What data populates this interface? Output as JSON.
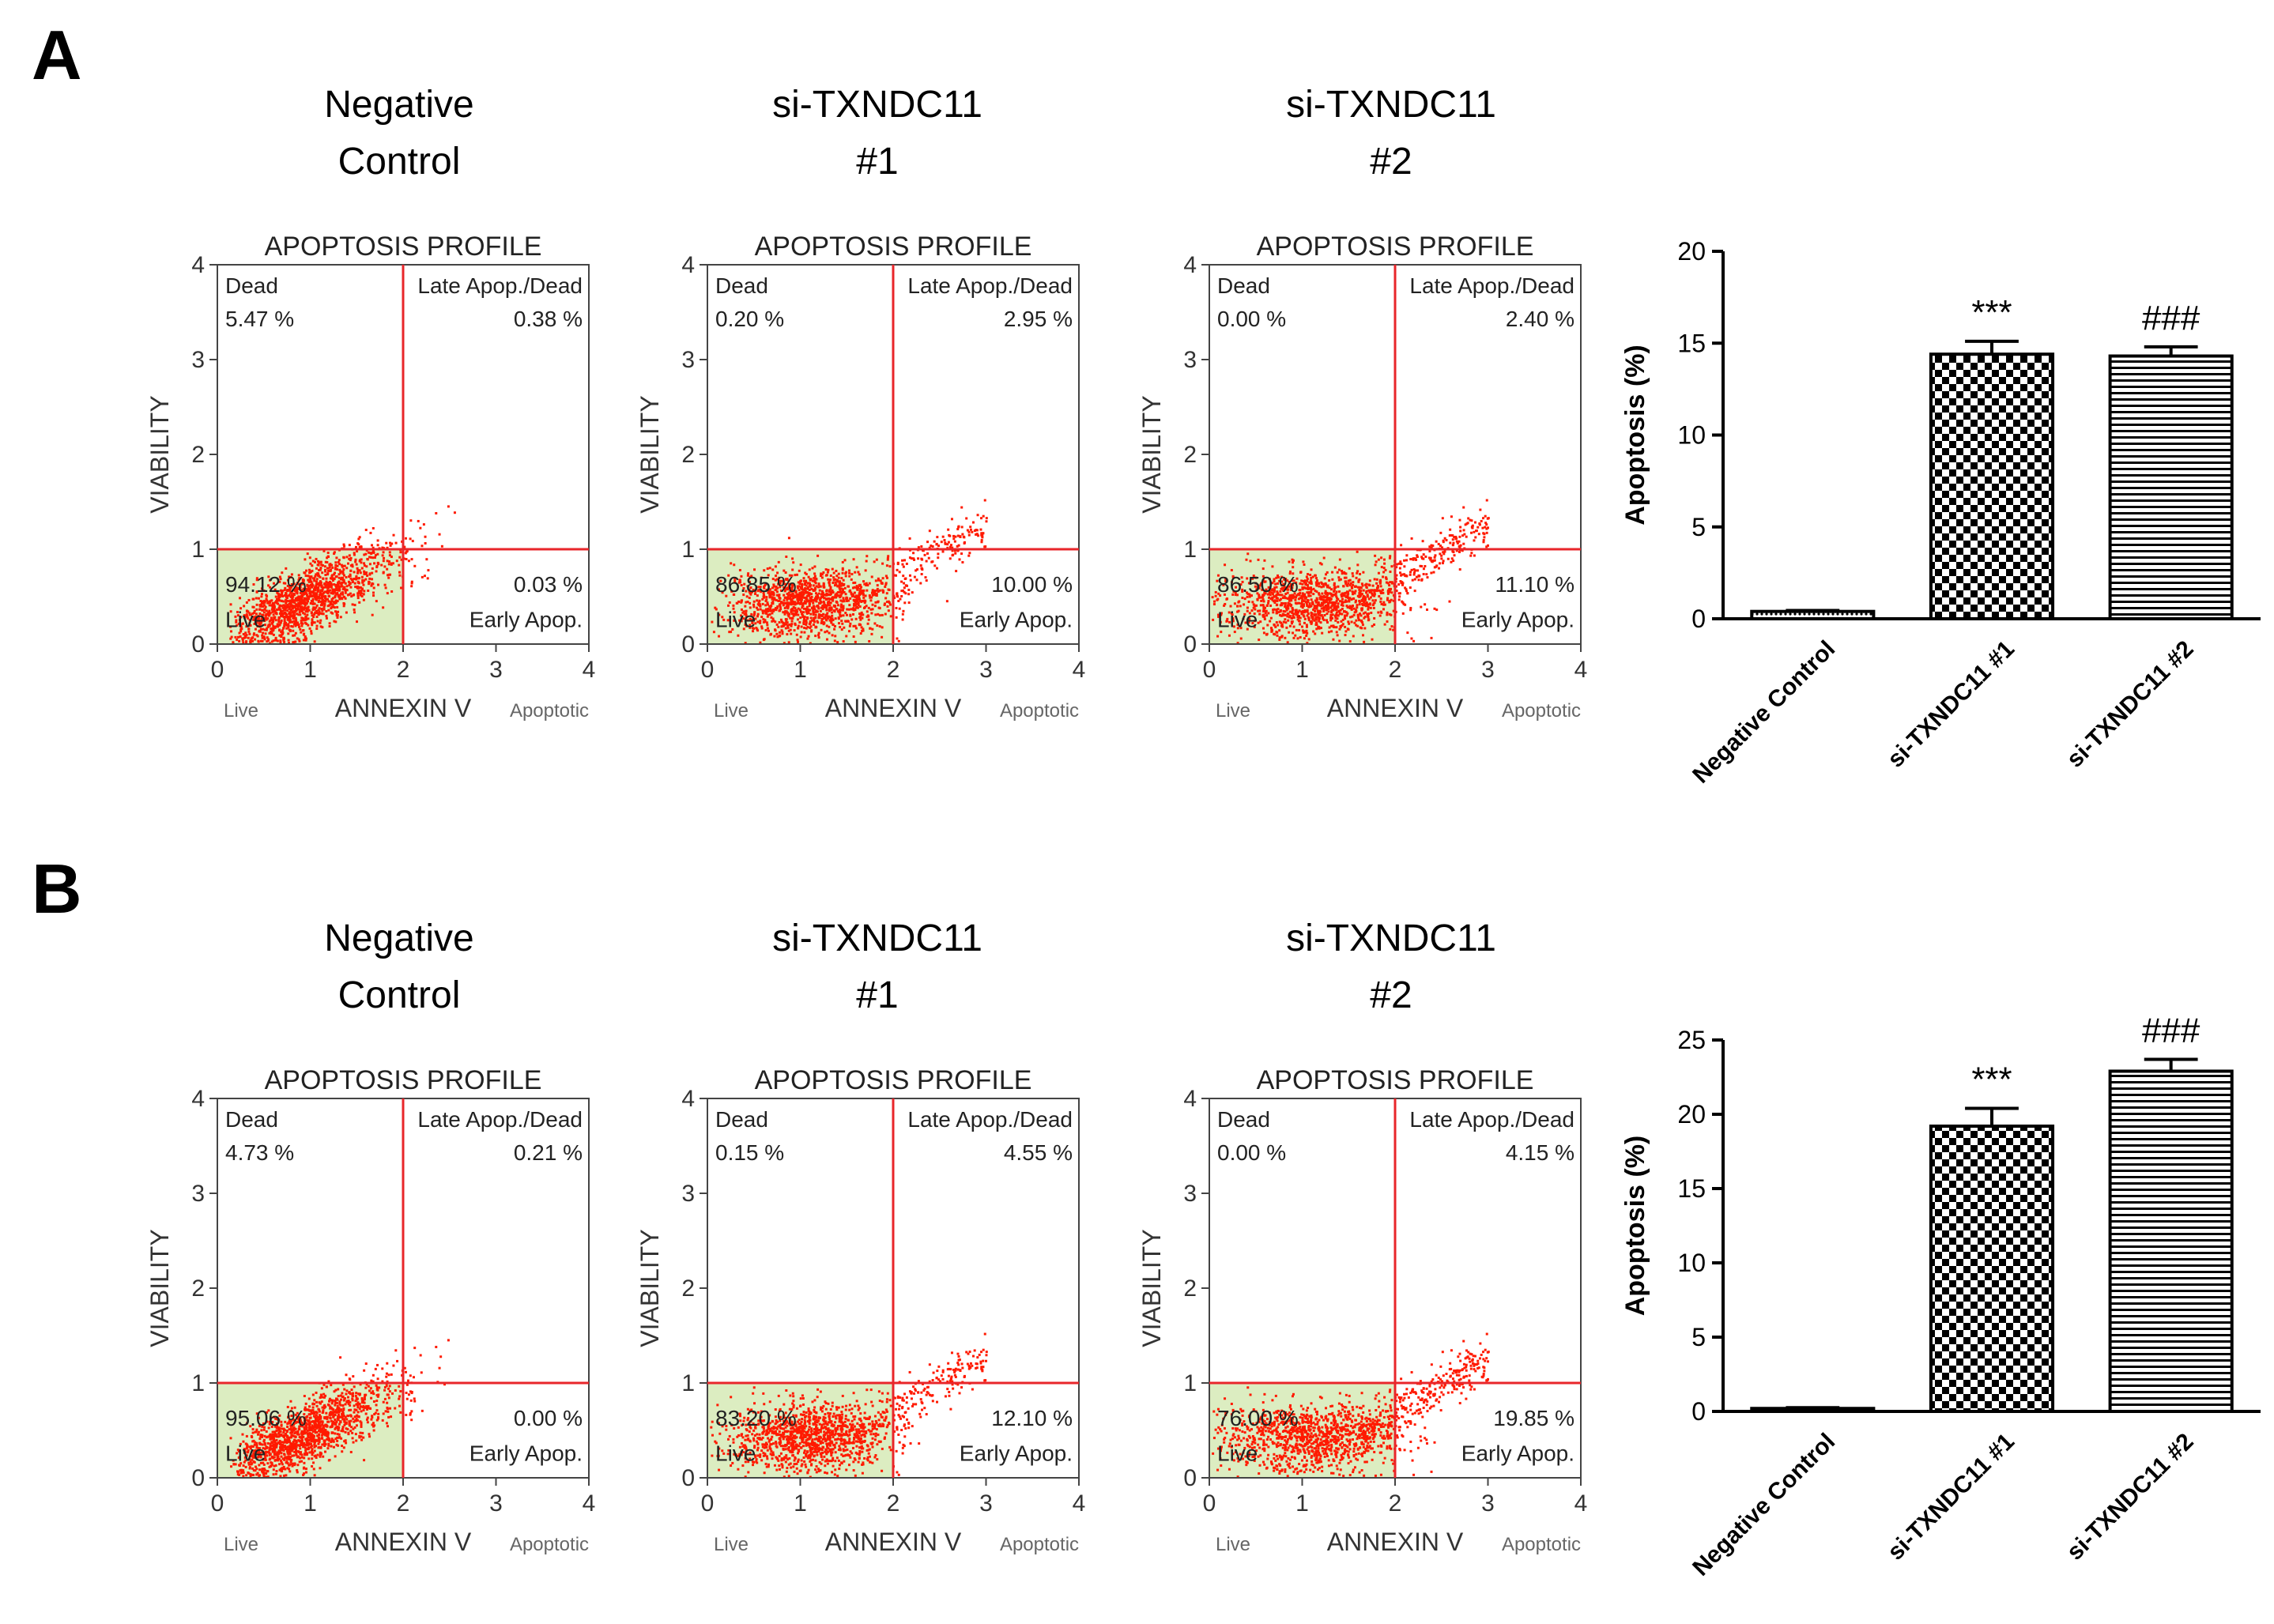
{
  "panels": [
    {
      "label": "A",
      "flow": [
        {
          "title": [
            "Negative",
            "Control"
          ],
          "plot_title": "APOPTOSIS PROFILE",
          "q": {
            "dead": "5.47 %",
            "late": "0.38 %",
            "live": "94.12 %",
            "early": "0.03 %"
          }
        },
        {
          "title": [
            "si-TXNDC11",
            "#1"
          ],
          "plot_title": "APOPTOSIS PROFILE",
          "q": {
            "dead": "0.20 %",
            "late": "2.95 %",
            "live": "86.85 %",
            "early": "10.00 %"
          }
        },
        {
          "title": [
            "si-TXNDC11",
            "#2"
          ],
          "plot_title": "APOPTOSIS PROFILE",
          "q": {
            "dead": "0.00 %",
            "late": "2.40 %",
            "live": "86.50 %",
            "early": "11.10 %"
          }
        }
      ]
    },
    {
      "label": "B",
      "flow": [
        {
          "title": [
            "Negative",
            "Control"
          ],
          "plot_title": "APOPTOSIS PROFILE",
          "q": {
            "dead": "4.73 %",
            "late": "0.21 %",
            "live": "95.06 %",
            "early": "0.00 %"
          }
        },
        {
          "title": [
            "si-TXNDC11",
            "#1"
          ],
          "plot_title": "APOPTOSIS PROFILE",
          "q": {
            "dead": "0.15 %",
            "late": "4.55 %",
            "live": "83.20 %",
            "early": "12.10 %"
          }
        },
        {
          "title": [
            "si-TXNDC11",
            "#2"
          ],
          "plot_title": "APOPTOSIS PROFILE",
          "q": {
            "dead": "0.00 %",
            "late": "4.15 %",
            "live": "76.00 %",
            "early": "19.85 %"
          }
        }
      ]
    }
  ],
  "flow_common": {
    "ylabel": "VIABILITY",
    "xlabel": "ANNEXIN V",
    "x_left": "Live",
    "x_right": "Apoptotic",
    "q_dead": "Dead",
    "q_late": "Late Apop./Dead",
    "q_live": "Live",
    "q_early": "Early Apop.",
    "ticks": [
      "0",
      "1",
      "2",
      "3",
      "4"
    ]
  },
  "chart_data": [
    {
      "type": "scatter",
      "title": "APOPTOSIS PROFILE",
      "xlabel": "ANNEXIN V",
      "ylabel": "VIABILITY",
      "xlim": [
        0,
        4
      ],
      "ylim": [
        0,
        4
      ],
      "gates": {
        "x": 2,
        "y": 1
      },
      "quadrants": [
        {
          "sample": "A · Negative Control",
          "dead": 5.47,
          "late_apop_dead": 0.38,
          "live": 94.12,
          "early_apop": 0.03
        },
        {
          "sample": "A · si-TXNDC11 #1",
          "dead": 0.2,
          "late_apop_dead": 2.95,
          "live": 86.85,
          "early_apop": 10.0
        },
        {
          "sample": "A · si-TXNDC11 #2",
          "dead": 0.0,
          "late_apop_dead": 2.4,
          "live": 86.5,
          "early_apop": 11.1
        },
        {
          "sample": "B · Negative Control",
          "dead": 4.73,
          "late_apop_dead": 0.21,
          "live": 95.06,
          "early_apop": 0.0
        },
        {
          "sample": "B · si-TXNDC11 #1",
          "dead": 0.15,
          "late_apop_dead": 4.55,
          "live": 83.2,
          "early_apop": 12.1
        },
        {
          "sample": "B · si-TXNDC11 #2",
          "dead": 0.0,
          "late_apop_dead": 4.15,
          "live": 76.0,
          "early_apop": 19.85
        }
      ]
    },
    {
      "type": "bar",
      "panel": "A",
      "categories": [
        "Negative Control",
        "si-TXNDC11 #1",
        "si-TXNDC11 #2"
      ],
      "values": [
        0.4,
        14.4,
        14.3
      ],
      "errors": [
        0.05,
        0.7,
        0.5
      ],
      "annotations": [
        "",
        "***",
        "###"
      ],
      "ylabel": "Apoptosis (%)",
      "ylim": [
        0,
        20
      ],
      "yticks": [
        "0",
        "5",
        "10",
        "15",
        "20"
      ],
      "patterns": [
        "dots",
        "checker",
        "hlines"
      ]
    },
    {
      "type": "bar",
      "panel": "B",
      "categories": [
        "Negative Control",
        "si-TXNDC11 #1",
        "si-TXNDC11 #2"
      ],
      "values": [
        0.2,
        19.2,
        22.9
      ],
      "errors": [
        0.05,
        1.2,
        0.8
      ],
      "annotations": [
        "",
        "***",
        "###"
      ],
      "ylabel": "Apoptosis (%)",
      "ylim": [
        0,
        25
      ],
      "yticks": [
        "0",
        "5",
        "10",
        "15",
        "20",
        "25"
      ],
      "patterns": [
        "dots",
        "checker",
        "hlines"
      ]
    }
  ]
}
